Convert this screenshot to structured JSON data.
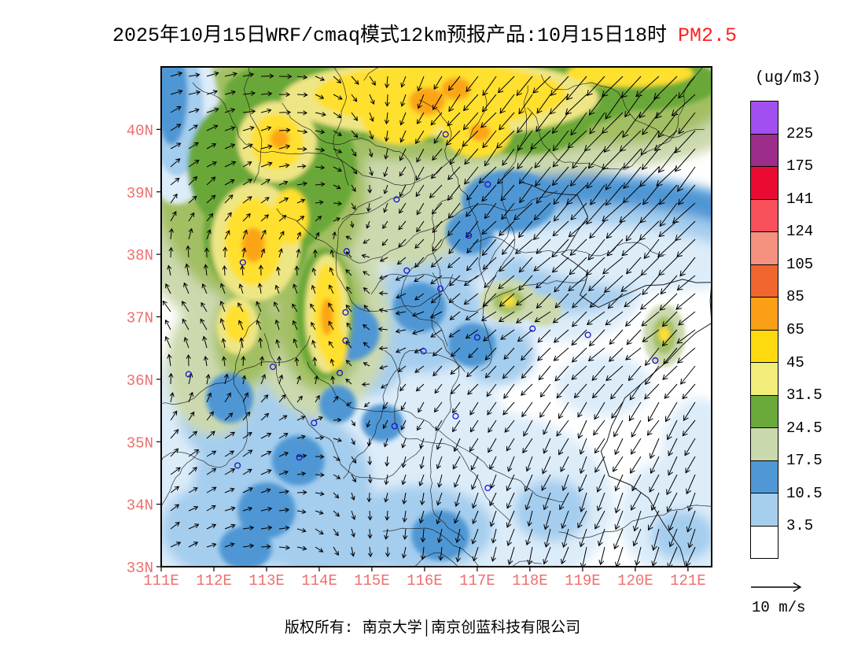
{
  "title": {
    "main": "2025年10月15日WRF/cmaq模式12km预报产品:10月15日18时",
    "pollutant": "PM2.5"
  },
  "footer": {
    "text": "版权所有: 南京大学│南京创蓝科技有限公司"
  },
  "legend": {
    "unit": "(ug/m3)",
    "tick_labels": [
      "225",
      "175",
      "141",
      "124",
      "105",
      "85",
      "65",
      "45",
      "31.5",
      "24.5",
      "17.5",
      "10.5",
      "3.5"
    ],
    "band_colors": [
      "#a24ff2",
      "#9c2d8a",
      "#ea0b32",
      "#f8515c",
      "#f4917f",
      "#f0662e",
      "#fb9f16",
      "#ffd90f",
      "#f2ec7a",
      "#6aaa3a",
      "#c9d9ad",
      "#5098d5",
      "#a6cfee",
      "#ffffff"
    ]
  },
  "wind_scale": {
    "label": "10 m/s",
    "speed_mps": 10
  },
  "colors": {
    "axis_label": "#ee6f6f",
    "title_highlight": "#ff2222",
    "frame": "#000000",
    "boundary": "#1a1a1a",
    "arrow": "#000000",
    "city_marker": "#1515cc"
  },
  "axes": {
    "lat_ticks": [
      {
        "label": "40N",
        "value": 40
      },
      {
        "label": "39N",
        "value": 39
      },
      {
        "label": "38N",
        "value": 38
      },
      {
        "label": "37N",
        "value": 37
      },
      {
        "label": "36N",
        "value": 36
      },
      {
        "label": "35N",
        "value": 35
      },
      {
        "label": "34N",
        "value": 34
      },
      {
        "label": "33N",
        "value": 33
      }
    ],
    "lon_ticks": [
      {
        "label": "111E",
        "value": 111
      },
      {
        "label": "112E",
        "value": 112
      },
      {
        "label": "113E",
        "value": 113
      },
      {
        "label": "114E",
        "value": 114
      },
      {
        "label": "115E",
        "value": 115
      },
      {
        "label": "116E",
        "value": 116
      },
      {
        "label": "117E",
        "value": 117
      },
      {
        "label": "118E",
        "value": 118
      },
      {
        "label": "119E",
        "value": 119
      },
      {
        "label": "120E",
        "value": 120
      },
      {
        "label": "121E",
        "value": 121
      }
    ]
  },
  "map": {
    "extent": {
      "lon_min": 111,
      "lon_max": 121.45,
      "lat_min": 33,
      "lat_max": 41
    },
    "palette": {
      "paleblue": "#dcecf9",
      "lightblue": "#a4cdee",
      "steelblue": "#4f97d4",
      "sage": "#ccd9ae",
      "olive": "#a3bf63",
      "green": "#69a838",
      "khaki": "#eee685",
      "yellow": "#ffe02e",
      "gold": "#fba513"
    },
    "field": [
      [
        "paleblue",
        114.0,
        34.9,
        3.6,
        2.5,
        0,
        0
      ],
      [
        "paleblue",
        117.0,
        34.0,
        2.6,
        1.5,
        0,
        0
      ],
      [
        "paleblue",
        112.1,
        33.8,
        1.8,
        1.6,
        0,
        0
      ],
      [
        "paleblue",
        116.1,
        36.8,
        1.7,
        1.2,
        0,
        0
      ],
      [
        "paleblue",
        118.6,
        37.5,
        1.6,
        0.9,
        0,
        0
      ],
      [
        "paleblue",
        120.9,
        33.8,
        1.2,
        1.0,
        0,
        0
      ],
      [
        "paleblue",
        121.2,
        34.8,
        0.7,
        0.9,
        0,
        0
      ],
      [
        "paleblue",
        115.0,
        33.3,
        2.2,
        0.8,
        0,
        0
      ],
      [
        "paleblue",
        119.4,
        35.9,
        0.9,
        0.5,
        0,
        0
      ],
      [
        "lightblue",
        113.3,
        34.3,
        1.7,
        1.3,
        0,
        0
      ],
      [
        "lightblue",
        112.4,
        35.6,
        1.1,
        1.0,
        0,
        0
      ],
      [
        "lightblue",
        114.7,
        36.6,
        1.1,
        0.9,
        0,
        0
      ],
      [
        "lightblue",
        116.0,
        37.0,
        1.1,
        0.9,
        0,
        0
      ],
      [
        "lightblue",
        115.9,
        33.6,
        1.4,
        0.7,
        0,
        0
      ],
      [
        "lightblue",
        111.9,
        33.6,
        0.9,
        0.7,
        0,
        0
      ],
      [
        "lightblue",
        118.4,
        33.9,
        0.7,
        0.5,
        0,
        0
      ],
      [
        "lightblue",
        118.7,
        37.6,
        1.4,
        0.55,
        0,
        0
      ],
      [
        "lightblue",
        114.2,
        33.4,
        1.2,
        0.6,
        0,
        0
      ],
      [
        "lightblue",
        117.4,
        36.4,
        0.7,
        0.5,
        0,
        0
      ],
      [
        "lightblue",
        116.5,
        38.15,
        0.95,
        0.6,
        0,
        0
      ],
      [
        "lightblue",
        120.9,
        33.5,
        0.6,
        0.4,
        0,
        0
      ],
      [
        "sage",
        116.0,
        40.4,
        5.6,
        1.35,
        0,
        0
      ],
      [
        "sage",
        112.9,
        38.9,
        2.5,
        2.3,
        0,
        0
      ],
      [
        "sage",
        114.0,
        36.9,
        1.35,
        1.5,
        0,
        0
      ],
      [
        "sage",
        119.6,
        40.4,
        2.6,
        1.0,
        0,
        0
      ],
      [
        "sage",
        117.4,
        39.8,
        1.6,
        0.9,
        0,
        0
      ],
      [
        "sage",
        112.0,
        36.2,
        0.9,
        1.1,
        0,
        0
      ],
      [
        "sage",
        115.6,
        38.6,
        1.3,
        0.8,
        0,
        0
      ],
      [
        "olive",
        116.1,
        40.5,
        4.7,
        1.0,
        0,
        0
      ],
      [
        "olive",
        112.9,
        39.1,
        2.0,
        1.9,
        0,
        0
      ],
      [
        "olive",
        114.05,
        37.0,
        0.85,
        1.2,
        0,
        0
      ],
      [
        "olive",
        119.5,
        40.5,
        2.2,
        0.75,
        0,
        0
      ],
      [
        "olive",
        112.6,
        36.7,
        0.6,
        0.8,
        0,
        0
      ],
      [
        "steelblue",
        119.9,
        38.75,
        2.6,
        0.5,
        6,
        0
      ],
      [
        "lightblue",
        120.0,
        38.3,
        2.3,
        0.45,
        6,
        0
      ],
      [
        "paleblue",
        119.9,
        37.95,
        2.2,
        0.5,
        6,
        0
      ],
      [
        "paleblue",
        111.3,
        40.2,
        0.8,
        1.4,
        0,
        1
      ],
      [
        "lightblue",
        111.3,
        40.35,
        0.5,
        1.1,
        0,
        1
      ],
      [
        "steelblue",
        111.2,
        40.55,
        0.3,
        0.8,
        0,
        1
      ],
      [
        "steelblue",
        113.0,
        33.9,
        0.55,
        0.45,
        0,
        1
      ],
      [
        "steelblue",
        113.6,
        34.7,
        0.5,
        0.4,
        0,
        1
      ],
      [
        "steelblue",
        112.3,
        35.7,
        0.45,
        0.4,
        0,
        1
      ],
      [
        "steelblue",
        114.6,
        36.75,
        0.55,
        0.45,
        0,
        1
      ],
      [
        "steelblue",
        115.9,
        37.15,
        0.5,
        0.4,
        0,
        1
      ],
      [
        "steelblue",
        116.3,
        33.5,
        0.55,
        0.4,
        0,
        1
      ],
      [
        "steelblue",
        112.6,
        33.3,
        0.5,
        0.35,
        0,
        1
      ],
      [
        "steelblue",
        115.2,
        35.3,
        0.4,
        0.3,
        0,
        1
      ],
      [
        "steelblue",
        114.35,
        35.6,
        0.35,
        0.3,
        0,
        1
      ],
      [
        "steelblue",
        116.9,
        36.55,
        0.45,
        0.35,
        0,
        1
      ],
      [
        "steelblue",
        116.85,
        38.35,
        0.45,
        0.35,
        0,
        1
      ],
      [
        "steelblue",
        117.6,
        38.85,
        0.9,
        0.5,
        0,
        1
      ],
      [
        "green",
        116.2,
        40.6,
        4.0,
        0.8,
        0,
        1
      ],
      [
        "green",
        113.1,
        39.4,
        1.6,
        1.3,
        0,
        1
      ],
      [
        "green",
        112.8,
        38.3,
        1.0,
        1.0,
        0,
        1
      ],
      [
        "green",
        114.1,
        37.05,
        0.55,
        1.05,
        0,
        1
      ],
      [
        "green",
        117.9,
        40.2,
        1.3,
        0.6,
        0,
        1
      ],
      [
        "green",
        120.0,
        40.75,
        1.6,
        0.45,
        0,
        1
      ],
      [
        "green",
        113.5,
        38.65,
        0.6,
        0.6,
        0,
        1
      ],
      [
        "sage",
        117.6,
        37.25,
        0.55,
        0.35,
        0,
        1
      ],
      [
        "sage",
        118.25,
        37.1,
        0.35,
        0.25,
        0,
        1
      ],
      [
        "sage",
        120.55,
        36.7,
        0.4,
        0.5,
        0,
        1
      ],
      [
        "olive",
        117.6,
        37.25,
        0.3,
        0.2,
        0,
        1
      ],
      [
        "olive",
        120.55,
        36.7,
        0.22,
        0.3,
        0,
        1
      ],
      [
        "khaki",
        113.2,
        39.8,
        0.75,
        0.65,
        0,
        1
      ],
      [
        "khaki",
        112.8,
        38.2,
        0.85,
        0.95,
        0,
        1
      ],
      [
        "khaki",
        116.3,
        40.5,
        3.0,
        0.62,
        0,
        1
      ],
      [
        "khaki",
        114.15,
        37.05,
        0.42,
        0.95,
        0,
        1
      ],
      [
        "khaki",
        112.45,
        36.85,
        0.4,
        0.45,
        0,
        1
      ],
      [
        "yellow",
        116.3,
        40.55,
        2.4,
        0.5,
        0,
        1
      ],
      [
        "yellow",
        115.55,
        40.2,
        0.75,
        0.45,
        0,
        1
      ],
      [
        "yellow",
        117.0,
        39.95,
        0.65,
        0.4,
        0,
        1
      ],
      [
        "yellow",
        113.2,
        39.8,
        0.5,
        0.45,
        0,
        1
      ],
      [
        "yellow",
        112.75,
        38.2,
        0.55,
        0.7,
        0,
        1
      ],
      [
        "yellow",
        113.45,
        38.6,
        0.35,
        0.45,
        0,
        1
      ],
      [
        "yellow",
        114.15,
        37.1,
        0.27,
        0.75,
        0,
        1
      ],
      [
        "yellow",
        114.3,
        36.5,
        0.22,
        0.35,
        0,
        1
      ],
      [
        "yellow",
        112.45,
        36.9,
        0.25,
        0.3,
        0,
        1
      ],
      [
        "yellow",
        119.9,
        40.9,
        1.2,
        0.22,
        0,
        1
      ],
      [
        "yellow",
        116.75,
        40.75,
        0.7,
        0.3,
        0,
        1
      ],
      [
        "yellow",
        117.6,
        37.25,
        0.12,
        0.09,
        0,
        1
      ],
      [
        "yellow",
        120.55,
        36.72,
        0.1,
        0.12,
        0,
        1
      ],
      [
        "gold",
        116.05,
        40.45,
        0.34,
        0.22,
        0,
        1
      ],
      [
        "gold",
        116.6,
        40.65,
        0.28,
        0.18,
        0,
        1
      ],
      [
        "gold",
        112.75,
        38.15,
        0.22,
        0.28,
        0,
        1
      ],
      [
        "gold",
        114.15,
        37.0,
        0.12,
        0.3,
        0,
        1
      ],
      [
        "gold",
        113.25,
        39.85,
        0.18,
        0.16,
        0,
        1
      ],
      [
        "gold",
        117.05,
        39.95,
        0.2,
        0.14,
        0,
        1
      ]
    ],
    "coastline": [
      [
        117.85,
        39.15
      ],
      [
        118.3,
        39.0
      ],
      [
        118.9,
        38.95
      ],
      [
        119.1,
        38.6
      ],
      [
        118.75,
        38.15
      ],
      [
        118.6,
        38.0
      ],
      [
        119.1,
        37.7
      ],
      [
        118.95,
        37.35
      ],
      [
        119.3,
        37.15
      ],
      [
        120.2,
        37.5
      ],
      [
        120.9,
        37.6
      ],
      [
        121.45,
        37.55
      ],
      [
        121.45,
        36.9
      ],
      [
        120.9,
        36.55
      ],
      [
        120.35,
        36.1
      ],
      [
        119.8,
        35.7
      ],
      [
        119.55,
        35.25
      ],
      [
        119.35,
        34.85
      ],
      [
        119.5,
        34.45
      ],
      [
        120.25,
        34.1
      ],
      [
        120.85,
        33.3
      ],
      [
        120.95,
        33.0
      ]
    ],
    "cities": [
      [
        116.4,
        39.92
      ],
      [
        117.2,
        39.12
      ],
      [
        114.52,
        38.05
      ],
      [
        112.55,
        37.87
      ],
      [
        117.0,
        36.67
      ],
      [
        113.62,
        34.75
      ],
      [
        114.5,
        36.62
      ],
      [
        114.5,
        37.07
      ],
      [
        115.47,
        38.88
      ],
      [
        116.84,
        38.3
      ],
      [
        116.3,
        37.45
      ],
      [
        115.98,
        36.45
      ],
      [
        115.66,
        37.74
      ],
      [
        114.39,
        36.1
      ],
      [
        113.9,
        35.3
      ],
      [
        115.43,
        35.25
      ],
      [
        116.59,
        35.41
      ],
      [
        118.05,
        36.81
      ],
      [
        117.2,
        34.26
      ],
      [
        112.45,
        34.62
      ],
      [
        113.12,
        36.2
      ],
      [
        111.52,
        36.08
      ],
      [
        119.1,
        36.71
      ],
      [
        120.38,
        36.3
      ]
    ],
    "wind": {
      "lons": [
        111,
        113,
        115,
        117,
        119,
        121.5
      ],
      "lats": [
        41,
        39,
        37,
        35,
        33
      ],
      "u": [
        [
          3,
          3,
          1,
          -5,
          -8,
          -9
        ],
        [
          2,
          2,
          0,
          -5,
          -7,
          -8
        ],
        [
          -2,
          -1,
          -1,
          -4,
          -6,
          -7
        ],
        [
          2,
          2,
          0,
          -2,
          -3,
          -4
        ],
        [
          2,
          2,
          0,
          -1,
          -2,
          -3
        ]
      ],
      "v": [
        [
          1,
          0,
          -2,
          -6,
          -9,
          -10
        ],
        [
          2,
          1,
          -1,
          -6,
          -8,
          -9
        ],
        [
          3,
          2,
          1,
          -3,
          -5,
          -6
        ],
        [
          2,
          1,
          -1,
          -4,
          -6,
          -7
        ],
        [
          1,
          0,
          -2,
          -5,
          -7,
          -8
        ]
      ]
    }
  }
}
